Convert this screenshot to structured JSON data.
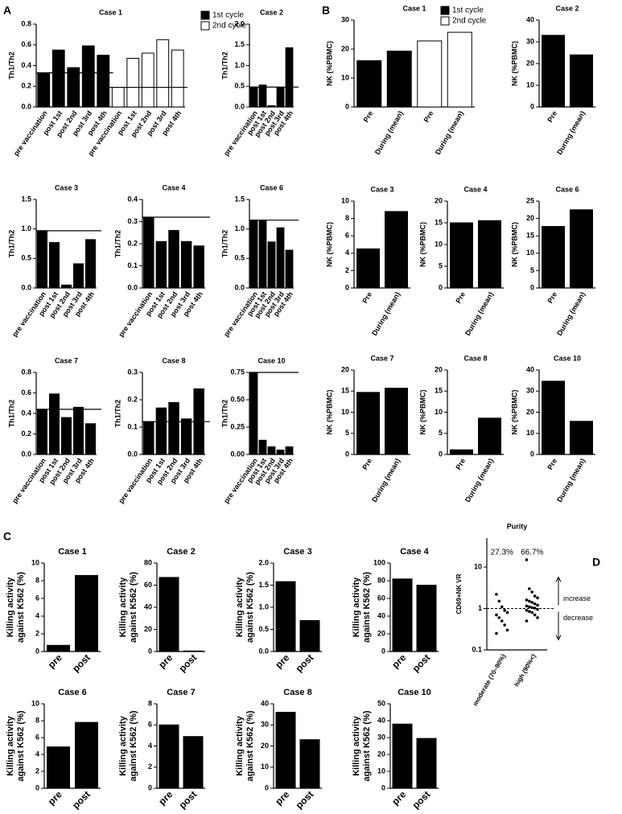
{
  "panel_labels": [
    "A",
    "B",
    "C",
    "D"
  ],
  "chart_data": [
    {
      "type": "bar",
      "title": "Case 1",
      "y_label": "Th1/Th2",
      "categories": [
        "pre vaccination",
        "post 1st",
        "post 2nd",
        "post 3rd",
        "post 4th",
        "pre vaccination",
        "post 1st",
        "post 2nd",
        "post 3rd",
        "post 4th"
      ],
      "series": [
        {
          "name": "1st cycle",
          "color": "#000000",
          "values": [
            0.33,
            0.55,
            0.38,
            0.59,
            0.5,
            null,
            null,
            null,
            null,
            null
          ]
        },
        {
          "name": "2nd cycle",
          "color": "#ffffff",
          "values": [
            null,
            null,
            null,
            null,
            null,
            0.19,
            0.47,
            0.52,
            0.65,
            0.55
          ]
        }
      ],
      "ylim": [
        0,
        0.8
      ],
      "yticks": [
        {
          "value": 0,
          "label": "0.0"
        },
        0.2,
        0.4,
        0.6,
        0.8
      ],
      "reference_lines": true,
      "legend": true
    },
    {
      "type": "bar",
      "title": "Case 2",
      "y_label": "Th1/Th2",
      "categories": [
        "pre vaccination",
        "post 1st",
        "post 2nd",
        "post 3rd",
        "post 4th"
      ],
      "values": [
        0.48,
        0.53,
        0.03,
        0.47,
        1.43
      ],
      "color": "#000000",
      "ylim": [
        0,
        2
      ],
      "yticks": [
        {
          "value": 0,
          "label": "0.0"
        },
        0.5,
        {
          "value": 1,
          "label": "1.0"
        },
        1.5,
        {
          "value": 2,
          "label": "2.0"
        }
      ],
      "reference_lines": true
    },
    {
      "type": "bar",
      "title": "Case 3",
      "y_label": "Th1/Th2",
      "categories": [
        "pre vaccination",
        "post 1st",
        "post 2nd",
        "post 3rd",
        "post 4th"
      ],
      "values": [
        0.97,
        0.77,
        0.05,
        0.41,
        0.82
      ],
      "color": "#000000",
      "ylim": [
        0,
        1.5
      ],
      "yticks": [
        {
          "value": 0,
          "label": "0.0"
        },
        0.5,
        {
          "value": 1,
          "label": "1.0"
        },
        1.5
      ],
      "reference_lines": true
    },
    {
      "type": "bar",
      "title": "Case 4",
      "y_label": "Th1/Th2",
      "categories": [
        "pre vaccination",
        "post 1st",
        "post 2nd",
        "post 3rd",
        "post 4th"
      ],
      "values": [
        0.32,
        0.21,
        0.26,
        0.21,
        0.19
      ],
      "color": "#000000",
      "ylim": [
        0,
        0.4
      ],
      "yticks": [
        {
          "value": 0,
          "label": "0.0"
        },
        0.1,
        0.2,
        0.3,
        0.4
      ],
      "reference_lines": true
    },
    {
      "type": "bar",
      "title": "Case 6",
      "y_label": "Th1/Th2",
      "categories": [
        "pre vaccination",
        "post 1st",
        "post 2nd",
        "post 3rd",
        "post 4th"
      ],
      "values": [
        1.15,
        1.15,
        0.78,
        1.02,
        0.64
      ],
      "color": "#000000",
      "ylim": [
        0,
        1.5
      ],
      "yticks": [
        {
          "value": 0,
          "label": "0.0"
        },
        0.5,
        {
          "value": 1,
          "label": "1.0"
        },
        1.5
      ],
      "reference_lines": true
    },
    {
      "type": "bar",
      "title": "Case 7",
      "y_label": "Th1/Th2",
      "categories": [
        "pre vaccination",
        "post 1st",
        "post 2nd",
        "post 3rd",
        "post 4th"
      ],
      "values": [
        0.44,
        0.59,
        0.36,
        0.46,
        0.3
      ],
      "color": "#000000",
      "ylim": [
        0,
        0.8
      ],
      "yticks": [
        {
          "value": 0,
          "label": "0.0"
        },
        0.2,
        0.4,
        0.6,
        0.8
      ],
      "reference_lines": true
    },
    {
      "type": "bar",
      "title": "Case 8",
      "y_label": "Th1/Th2",
      "categories": [
        "pre vaccination",
        "post 1st",
        "post 2nd",
        "post 3rd",
        "post 4th"
      ],
      "values": [
        0.12,
        0.17,
        0.19,
        0.13,
        0.24
      ],
      "color": "#000000",
      "ylim": [
        0,
        0.3
      ],
      "yticks": [
        {
          "value": 0,
          "label": "0.0"
        },
        0.1,
        0.2,
        0.3
      ],
      "reference_lines": true
    },
    {
      "type": "bar",
      "title": "Case 10",
      "y_label": "Th1/Th2",
      "categories": [
        "pre vaccination",
        "post 1st",
        "post 2nd",
        "post 3rd",
        "post 4th"
      ],
      "values": [
        0.75,
        0.13,
        0.07,
        0.04,
        0.07
      ],
      "color": "#000000",
      "ylim": [
        0,
        0.75
      ],
      "yticks": [
        {
          "value": 0,
          "label": "0.00"
        },
        0.25,
        {
          "value": 0.5,
          "label": "0.50"
        },
        0.75
      ],
      "reference_lines": true
    },
    {
      "type": "bar",
      "title": "Case 1",
      "y_label": "NK (%PBMC)",
      "categories": [
        "Pre",
        "During (mean)",
        "Pre",
        "During (mean)"
      ],
      "series": [
        {
          "name": "1st cycle",
          "color": "#000000",
          "values": [
            16,
            19.3,
            null,
            null
          ]
        },
        {
          "name": "2nd cycle",
          "color": "#ffffff",
          "values": [
            null,
            null,
            22.8,
            25.8
          ]
        }
      ],
      "ylim": [
        0,
        30
      ],
      "yticks": [
        0,
        10,
        20,
        30
      ],
      "legend": true
    },
    {
      "type": "bar",
      "title": "Case 2",
      "y_label": "NK (%PBMC)",
      "categories": [
        "Pre",
        "During (mean)"
      ],
      "values": [
        33,
        24
      ],
      "color": "#000000",
      "ylim": [
        0,
        40
      ],
      "yticks": [
        0,
        10,
        20,
        30,
        40
      ]
    },
    {
      "type": "bar",
      "title": "Case 3",
      "y_label": "NK (%PBMC)",
      "categories": [
        "Pre",
        "During (mean)"
      ],
      "values": [
        4.5,
        8.8
      ],
      "color": "#000000",
      "ylim": [
        0,
        10
      ],
      "yticks": [
        0,
        2,
        4,
        6,
        8,
        10
      ]
    },
    {
      "type": "bar",
      "title": "Case 4",
      "y_label": "NK (%PBMC)",
      "categories": [
        "Pre",
        "During (mean)"
      ],
      "values": [
        15,
        15.5
      ],
      "color": "#000000",
      "ylim": [
        0,
        20
      ],
      "yticks": [
        0,
        5,
        10,
        15,
        20
      ]
    },
    {
      "type": "bar",
      "title": "Case 6",
      "y_label": "NK (%PBMC)",
      "categories": [
        "Pre",
        "During (mean)"
      ],
      "values": [
        17.7,
        22.5
      ],
      "color": "#000000",
      "ylim": [
        0,
        25
      ],
      "yticks": [
        0,
        5,
        10,
        15,
        20,
        25
      ]
    },
    {
      "type": "bar",
      "title": "Case 7",
      "y_label": "NK (%PBMC)",
      "categories": [
        "Pre",
        "During (mean)"
      ],
      "values": [
        14.7,
        15.7
      ],
      "color": "#000000",
      "ylim": [
        0,
        20
      ],
      "yticks": [
        0,
        5,
        10,
        15,
        20
      ]
    },
    {
      "type": "bar",
      "title": "Case 8",
      "y_label": "NK (%PBMC)",
      "categories": [
        "Pre",
        "During (mean)"
      ],
      "values": [
        1.1,
        8.6
      ],
      "color": "#000000",
      "ylim": [
        0,
        20
      ],
      "yticks": [
        0,
        5,
        10,
        15,
        20
      ]
    },
    {
      "type": "bar",
      "title": "Case 10",
      "y_label": "NK (%PBMC)",
      "categories": [
        "Pre",
        "During (mean)"
      ],
      "values": [
        34.7,
        15.7
      ],
      "color": "#000000",
      "ylim": [
        0,
        40
      ],
      "yticks": [
        0,
        10,
        20,
        30,
        40
      ]
    },
    {
      "type": "bar",
      "title": "Case 1",
      "y_label": [
        "Killing activity",
        "against K562 (%)"
      ],
      "categories": [
        "pre",
        "post"
      ],
      "values": [
        0.7,
        8.6
      ],
      "color": "#000000",
      "ylim": [
        0,
        10
      ],
      "yticks": [
        0,
        2,
        4,
        6,
        8,
        10
      ]
    },
    {
      "type": "bar",
      "title": "Case 2",
      "y_label": [
        "Killing activity",
        "against K562 (%)"
      ],
      "categories": [
        "pre",
        "post"
      ],
      "values": [
        67,
        0.5
      ],
      "color": "#000000",
      "ylim": [
        0,
        80
      ],
      "yticks": [
        0,
        20,
        40,
        60,
        80
      ]
    },
    {
      "type": "bar",
      "title": "Case 3",
      "y_label": [
        "Killing activity",
        "against K562 (%)"
      ],
      "categories": [
        "pre",
        "post"
      ],
      "values": [
        1.58,
        0.7
      ],
      "color": "#000000",
      "ylim": [
        0,
        2
      ],
      "yticks": [
        {
          "value": 0,
          "label": "0.0"
        },
        0.5,
        {
          "value": 1,
          "label": "1.0"
        },
        1.5,
        {
          "value": 2,
          "label": "2.0"
        }
      ]
    },
    {
      "type": "bar",
      "title": "Case 4",
      "y_label": [
        "Killing activity",
        "against K562 (%)"
      ],
      "categories": [
        "pre",
        "post"
      ],
      "values": [
        82,
        75
      ],
      "color": "#000000",
      "ylim": [
        0,
        100
      ],
      "yticks": [
        0,
        20,
        40,
        60,
        80,
        100
      ]
    },
    {
      "type": "bar",
      "title": "Case 6",
      "y_label": [
        "Killing activity",
        "against K562 (%)"
      ],
      "categories": [
        "pre",
        "post"
      ],
      "values": [
        4.9,
        7.8
      ],
      "color": "#000000",
      "ylim": [
        0,
        10
      ],
      "yticks": [
        0,
        2,
        4,
        6,
        8,
        10
      ]
    },
    {
      "type": "bar",
      "title": "Case 7",
      "y_label": [
        "Killing activity",
        "against K562 (%)"
      ],
      "categories": [
        "pre",
        "post"
      ],
      "values": [
        6,
        4.9
      ],
      "color": "#000000",
      "ylim": [
        0,
        8
      ],
      "yticks": [
        0,
        2,
        4,
        6,
        8
      ]
    },
    {
      "type": "bar",
      "title": "Case 8",
      "y_label": [
        "Killing activity",
        "against K562 (%)"
      ],
      "categories": [
        "pre",
        "post"
      ],
      "values": [
        36,
        23
      ],
      "color": "#000000",
      "ylim": [
        0,
        40
      ],
      "yticks": [
        0,
        10,
        20,
        30,
        40
      ]
    },
    {
      "type": "bar",
      "title": "Case 10",
      "y_label": [
        "Killing activity",
        "against K562 (%)"
      ],
      "categories": [
        "pre",
        "post"
      ],
      "values": [
        38,
        29.5
      ],
      "color": "#000000",
      "ylim": [
        0,
        50
      ],
      "yticks": [
        0,
        10,
        20,
        30,
        40,
        50
      ]
    },
    {
      "type": "strip",
      "title": "Purity",
      "y_label": "CD69+NK VR",
      "categories": [
        "moderate (70–90%)",
        "high (90%<)"
      ],
      "values": [
        [
          2.2,
          1.5,
          1.1,
          0.9,
          0.8,
          0.7,
          0.6,
          0.5,
          0.4,
          0.3,
          0.25
        ],
        [
          15,
          3,
          2.5,
          2,
          1.8,
          1.6,
          1.5,
          1.4,
          1.3,
          1.2,
          1.15,
          1.1,
          1.05,
          1.02,
          0.95,
          0.9,
          0.85,
          0.8,
          0.7,
          0.6,
          0.5
        ]
      ],
      "group_labels": [
        "27.3%",
        "66.7%"
      ],
      "annotations": [
        "increase",
        "decrease"
      ],
      "reference_line": 1,
      "log_scale": true,
      "ylim": [
        0.1,
        50
      ],
      "yticks": [
        0.1,
        1,
        10
      ],
      "color": "#000000"
    }
  ]
}
